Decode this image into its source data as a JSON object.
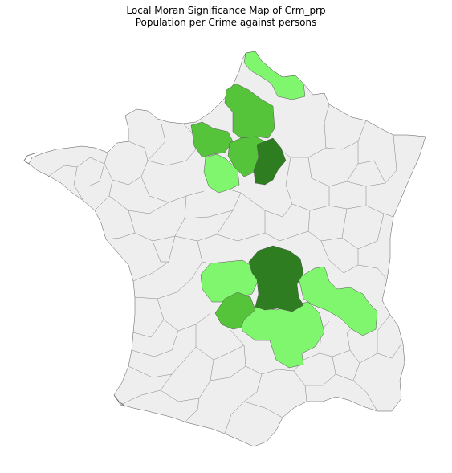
{
  "title_line1": "Local Moran Significance Map of Crm_prp",
  "title_line2": "Population per Crime against persons",
  "colors": {
    "background": "#ffffff",
    "not_significant": "#eeeeee",
    "significance_1": "#80f56e",
    "significance_2": "#55c43b",
    "significance_3": "#2e7d20",
    "border": "#555555"
  },
  "map": {
    "country": "France",
    "unit": "departement",
    "highlighted_clusters": [
      {
        "area": "Nord / Pas-de-Calais / Aisne",
        "level": "significance_1"
      },
      {
        "area": "Oise / Somme / Seine-et-Marne",
        "level": "significance_2"
      },
      {
        "area": "Eure / Seine-et-Oise",
        "level": "significance_2"
      },
      {
        "area": "Eure-et-Loir / Loiret",
        "level": "significance_1"
      },
      {
        "area": "Aube / Yonne",
        "level": "significance_3"
      },
      {
        "area": "Nievre / Allier / Saone-et-Loire",
        "level": "significance_3"
      },
      {
        "area": "Cher / Indre / Creuse",
        "level": "significance_1"
      },
      {
        "area": "Correze / Haute-Vienne",
        "level": "significance_2"
      },
      {
        "area": "Puy-de-Dome / Loire / Haute-Loire",
        "level": "significance_1"
      },
      {
        "area": "Ain / Isere / Savoie",
        "level": "significance_1"
      },
      {
        "area": "Cantal / Lozere",
        "level": "significance_1"
      }
    ]
  }
}
